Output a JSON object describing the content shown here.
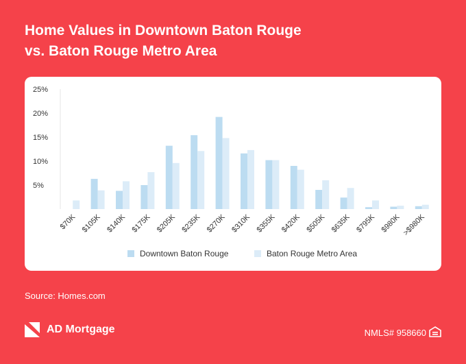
{
  "header": {
    "title_line1": "Home Values in Downtown Baton Rouge",
    "title_line2": "vs. Baton Rouge Metro Area"
  },
  "colors": {
    "background": "#f5424a",
    "series_downtown": "#bcdcf1",
    "series_metro": "#dcecf8",
    "axis_text": "#333333"
  },
  "chart_data": {
    "type": "bar",
    "categories": [
      "$70K",
      "$105K",
      "$140K",
      "$175K",
      "$205K",
      "$235K",
      "$270K",
      "$310K",
      "$355K",
      "$420K",
      "$505K",
      "$635K",
      "$795K",
      "$980K",
      ">$980K"
    ],
    "series": [
      {
        "name": "Downtown Baton Rouge",
        "values": [
          0,
          6.3,
          3.8,
          5.0,
          13.2,
          15.4,
          19.2,
          11.6,
          10.2,
          9.0,
          4.0,
          2.4,
          0.4,
          0.5,
          0.6
        ]
      },
      {
        "name": "Baton Rouge Metro Area",
        "values": [
          1.8,
          3.9,
          5.8,
          7.7,
          9.6,
          12.1,
          14.8,
          12.3,
          10.2,
          8.2,
          6.0,
          4.4,
          1.8,
          0.7,
          0.9
        ]
      }
    ],
    "yticks": [
      "25%",
      "20%",
      "15%",
      "10%",
      "5%"
    ],
    "ylim": [
      0,
      25
    ],
    "legend_position": "bottom"
  },
  "source": "Source: Homes.com",
  "footer": {
    "brand": "AD Mortgage",
    "nmls": "NMLS# 958660"
  }
}
